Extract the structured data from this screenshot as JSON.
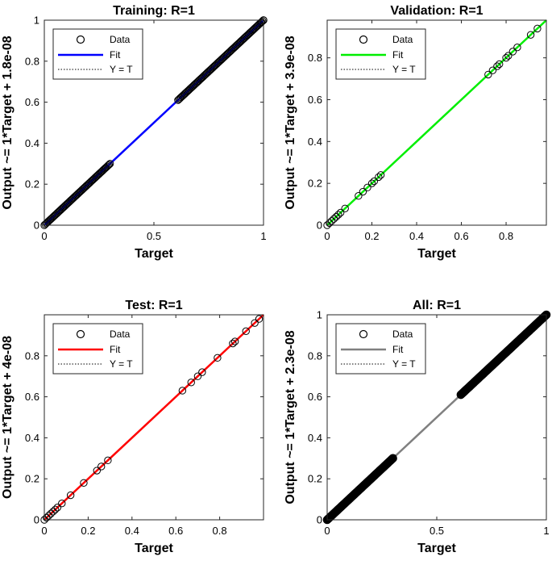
{
  "chart_data": [
    {
      "type": "scatter",
      "title": "Training: R=1",
      "xlabel": "Target",
      "ylabel": "Output ~= 1*Target + 1.8e-08",
      "xlim": [
        0,
        1
      ],
      "ylim": [
        0,
        1
      ],
      "xticks": [
        "0",
        "0.5",
        "1"
      ],
      "yticks": [
        "0",
        "0.2",
        "0.4",
        "0.6",
        "0.8",
        "1"
      ],
      "fit_color": "#0000ff",
      "legend": {
        "position": "top-left",
        "entries": [
          "Data",
          "Fit",
          "Y = T"
        ]
      },
      "points": {
        "segments": [
          [
            0,
            0.3
          ],
          [
            0.61,
            1.0
          ]
        ],
        "extra_x": [
          0.99,
          1.0
        ]
      }
    },
    {
      "type": "scatter",
      "title": "Validation: R=1",
      "xlabel": "Target",
      "ylabel": "Output ~= 1*Target + 3.9e-08",
      "xlim": [
        0,
        0.98
      ],
      "ylim": [
        0,
        0.98
      ],
      "xticks": [
        "0",
        "0.2",
        "0.4",
        "0.6",
        "0.8"
      ],
      "yticks": [
        "0",
        "0.2",
        "0.4",
        "0.6",
        "0.8"
      ],
      "fit_color": "#00ee00",
      "legend": {
        "position": "top-left",
        "entries": [
          "Data",
          "Fit",
          "Y = T"
        ]
      },
      "points": {
        "x": [
          0.0,
          0.01,
          0.02,
          0.03,
          0.04,
          0.05,
          0.06,
          0.08,
          0.14,
          0.16,
          0.18,
          0.2,
          0.21,
          0.23,
          0.24,
          0.72,
          0.74,
          0.76,
          0.77,
          0.8,
          0.81,
          0.83,
          0.85,
          0.91,
          0.94
        ]
      }
    },
    {
      "type": "scatter",
      "title": "Test: R=1",
      "xlabel": "Target",
      "ylabel": "Output ~= 1*Target + 4e-08",
      "xlim": [
        0,
        1
      ],
      "ylim": [
        0,
        1
      ],
      "xticks": [
        "0",
        "0.2",
        "0.4",
        "0.6",
        "0.8"
      ],
      "yticks": [
        "0",
        "0.2",
        "0.4",
        "0.6",
        "0.8"
      ],
      "fit_color": "#ff0000",
      "legend": {
        "position": "top-left",
        "entries": [
          "Data",
          "Fit",
          "Y = T"
        ]
      },
      "points": {
        "x": [
          0.0,
          0.01,
          0.02,
          0.03,
          0.04,
          0.05,
          0.06,
          0.08,
          0.12,
          0.18,
          0.24,
          0.26,
          0.29,
          0.63,
          0.67,
          0.7,
          0.72,
          0.79,
          0.86,
          0.87,
          0.92,
          0.96,
          0.98
        ]
      }
    },
    {
      "type": "scatter",
      "title": "All: R=1",
      "xlabel": "Target",
      "ylabel": "Output ~= 1*Target + 2.3e-08",
      "xlim": [
        0,
        1
      ],
      "ylim": [
        0,
        1
      ],
      "xticks": [
        "0",
        "0.5",
        "1"
      ],
      "yticks": [
        "0",
        "0.2",
        "0.4",
        "0.6",
        "0.8",
        "1"
      ],
      "fit_color": "#808080",
      "legend": {
        "position": "top-left",
        "entries": [
          "Data",
          "Fit",
          "Y = T"
        ]
      },
      "points": {
        "segments": [
          [
            0,
            0.3
          ],
          [
            0.61,
            1.0
          ]
        ]
      }
    }
  ]
}
